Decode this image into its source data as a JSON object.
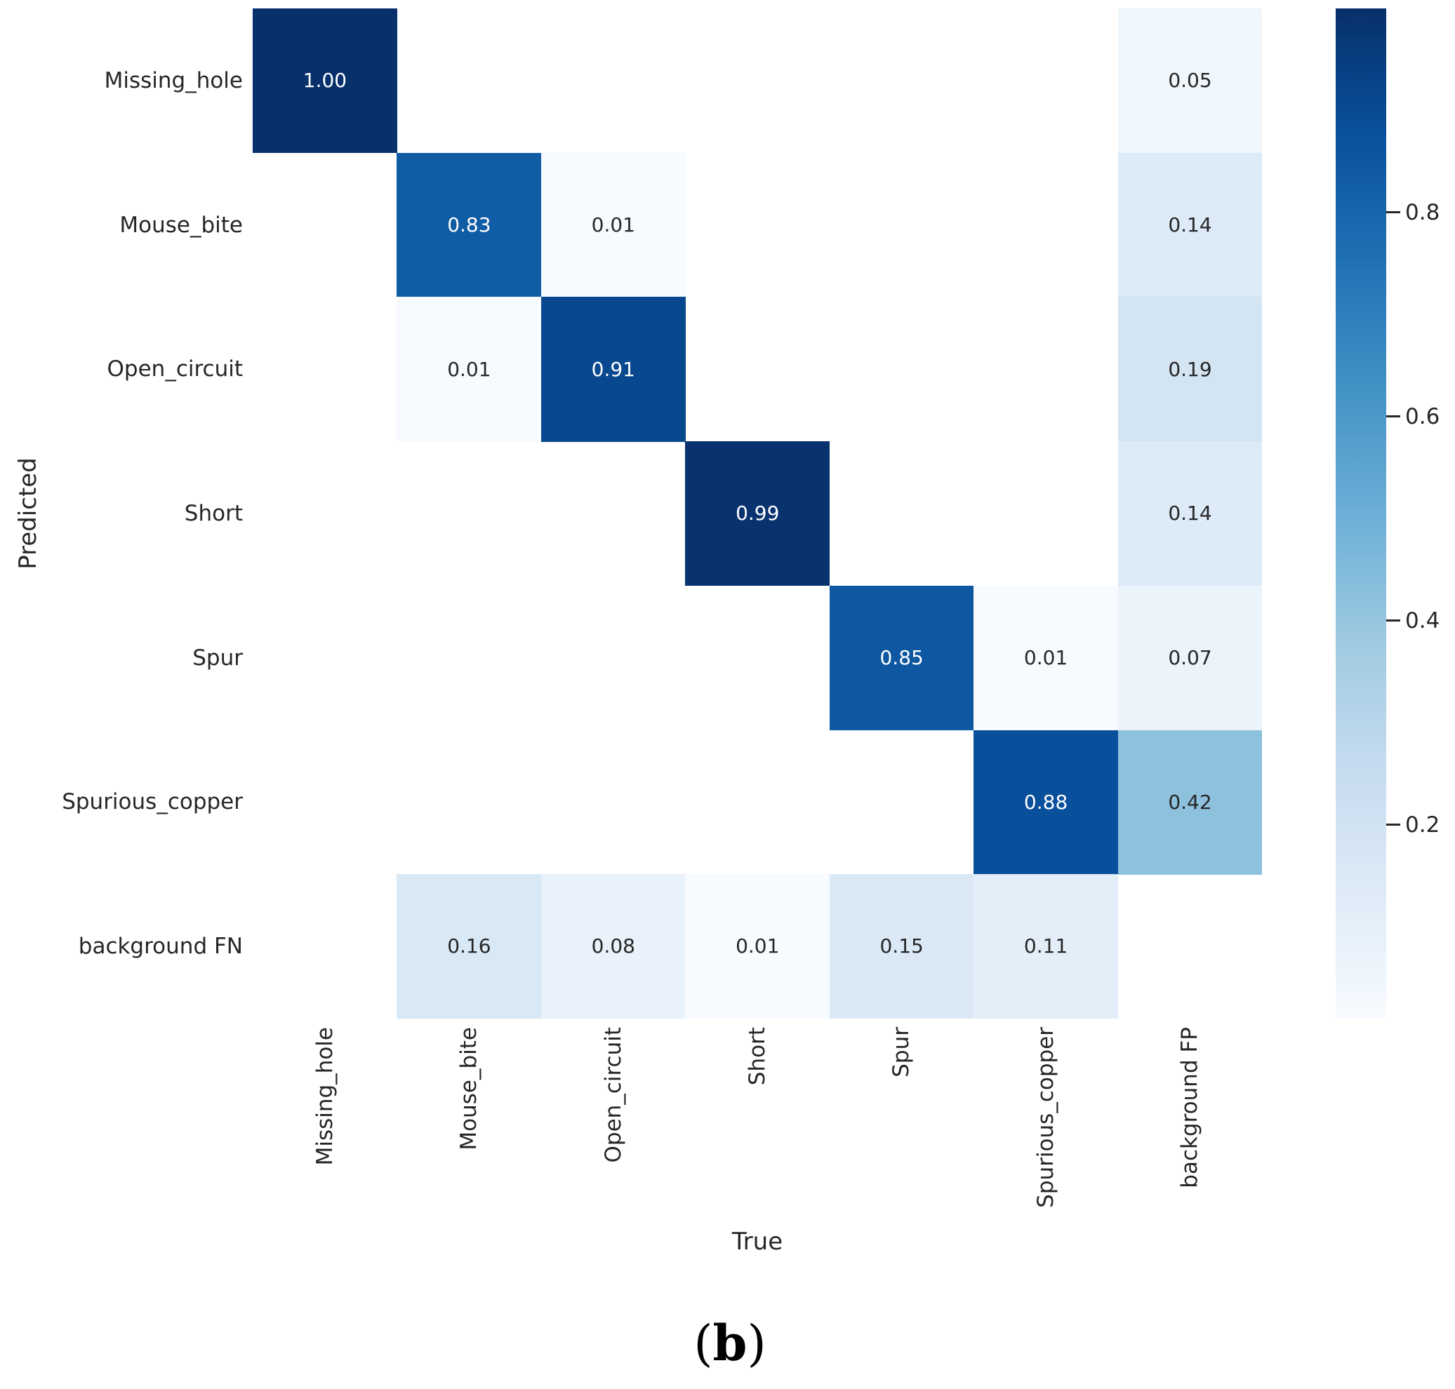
{
  "figure": {
    "caption": "(b)"
  },
  "chart_data": {
    "type": "heatmap",
    "title": "",
    "xlabel": "True",
    "ylabel": "Predicted",
    "x_categories": [
      "Missing_hole",
      "Mouse_bite",
      "Open_circuit",
      "Short",
      "Spur",
      "Spurious_copper",
      "background FP"
    ],
    "y_categories": [
      "Missing_hole",
      "Mouse_bite",
      "Open_circuit",
      "Short",
      "Spur",
      "Spurious_copper",
      "background FN"
    ],
    "matrix": [
      [
        1.0,
        null,
        null,
        null,
        null,
        null,
        0.05
      ],
      [
        null,
        0.83,
        0.01,
        null,
        null,
        null,
        0.14
      ],
      [
        null,
        0.01,
        0.91,
        null,
        null,
        null,
        0.19
      ],
      [
        null,
        null,
        null,
        0.99,
        null,
        null,
        0.14
      ],
      [
        null,
        null,
        null,
        null,
        0.85,
        0.01,
        0.07
      ],
      [
        null,
        null,
        null,
        null,
        null,
        0.88,
        0.42
      ],
      [
        null,
        0.16,
        0.08,
        0.01,
        0.15,
        0.11,
        null
      ]
    ],
    "annotation_decimals": 2,
    "masked_cells_blank": true,
    "colormap": "Blues",
    "vmin": 0.01,
    "vmax": 1.0,
    "colorbar_ticks": [
      0.8,
      0.6,
      0.4,
      0.2
    ],
    "colorbar_position": "right",
    "grid": false,
    "colors": {
      "background": "#ffffff",
      "label_text": "#262626",
      "annotation_on_dark": "#ffffff",
      "annotation_on_light": "#262626",
      "colormap_min": "#f7fbff",
      "colormap_max": "#08306b"
    }
  }
}
